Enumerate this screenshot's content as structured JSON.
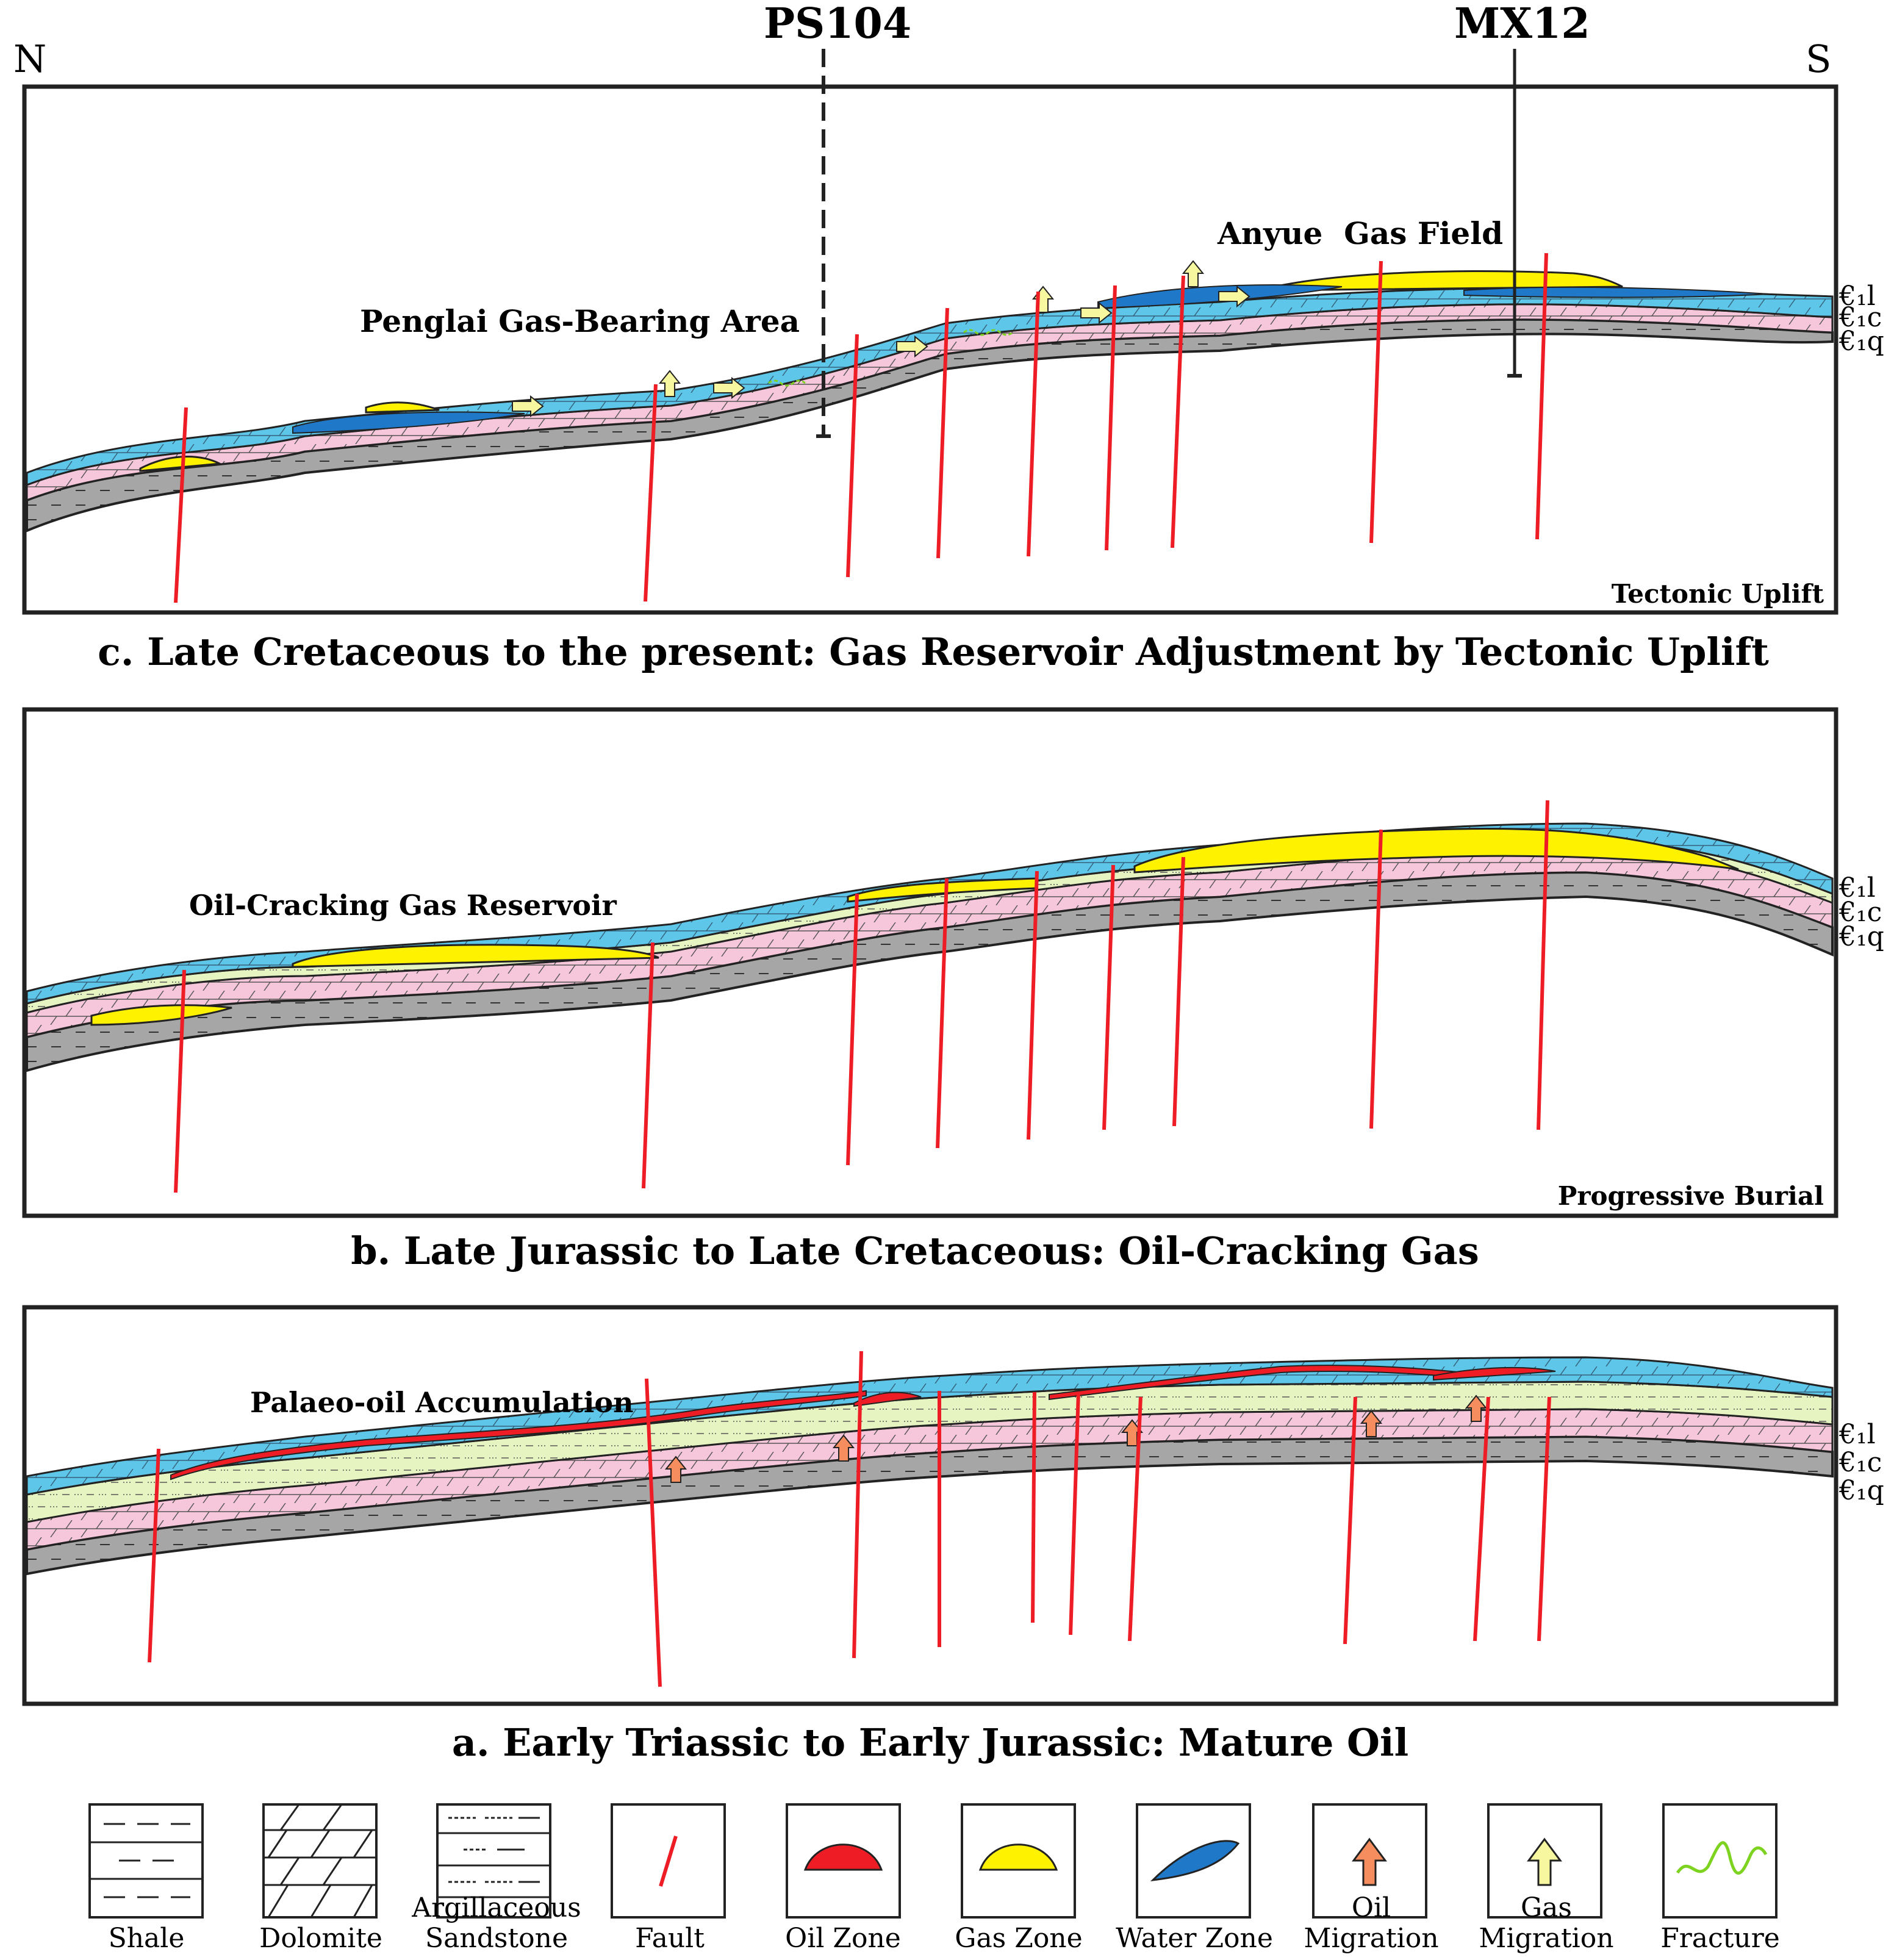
{
  "orientation": {
    "north": "N",
    "south": "S"
  },
  "wells": [
    {
      "name": "PS104"
    },
    {
      "name": "MX12"
    }
  ],
  "stratigraphy_labels": [
    "€₁l",
    "€₁c",
    "€₁q"
  ],
  "panels": {
    "c": {
      "caption": "c. Late Cretaceous to the present: Gas Reservoir Adjustment by Tectonic Uplift",
      "corner_label": "Tectonic Uplift",
      "annotations": [
        "Penglai Gas-Bearing Area",
        "Anyue  Gas Field"
      ]
    },
    "b": {
      "caption": "b. Late Jurassic to Late Cretaceous: Oil-Cracking Gas",
      "corner_label": "Progressive Burial",
      "annotations": [
        "Oil-Cracking Gas Reservoir"
      ]
    },
    "a": {
      "caption": "a. Early Triassic to Early Jurassic: Mature Oil",
      "annotations": [
        "Palaeo-oil Accumulation"
      ]
    }
  },
  "legend": [
    {
      "label": "Shale"
    },
    {
      "label": "Dolomite"
    },
    {
      "label": "Argillaceous",
      "label2": "Sandstone"
    },
    {
      "label": "Fault"
    },
    {
      "label": "Oil Zone"
    },
    {
      "label": "Gas Zone"
    },
    {
      "label": "Water Zone"
    },
    {
      "label": "Oil",
      "label2": "Migration"
    },
    {
      "label": "Gas",
      "label2": "Migration"
    },
    {
      "label": "Fracture"
    }
  ],
  "colors": {
    "shale": "#a6a6a6",
    "dolomite_pink": "#f6c6da",
    "sandstone_green": "#e6f4c2",
    "water_blue": "#1f78c8",
    "carbonate_blue": "#5ec6e8",
    "gas_yellow": "#fff200",
    "oil_red": "#ee1c24",
    "oil_arrow": "#f58d5f",
    "gas_arrow": "#f7f7a0",
    "fracture_green": "#7ed321",
    "fault_red": "#ee1c24"
  }
}
